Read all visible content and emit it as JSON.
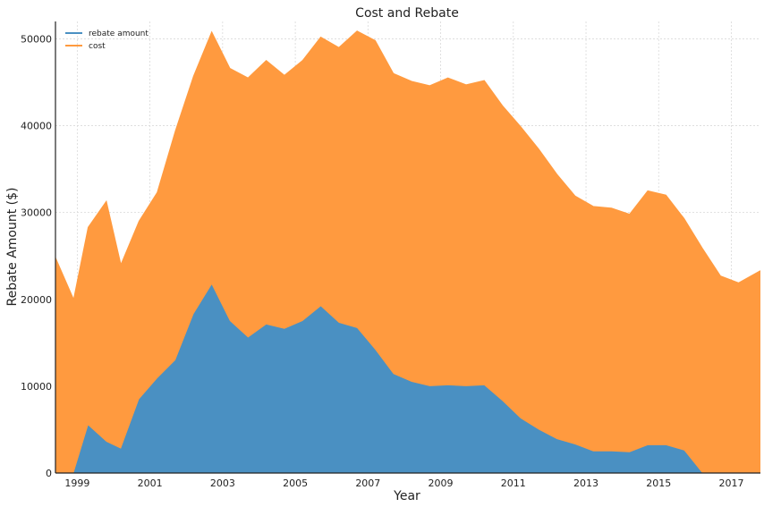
{
  "chart_data": {
    "type": "area",
    "stacked": true,
    "title": "Cost and Rebate",
    "xlabel": "Year",
    "ylabel": "Rebate Amount ($)",
    "xlim": [
      1998.4,
      2017.8
    ],
    "ylim": [
      0,
      52000
    ],
    "x_ticks": [
      1999,
      2001,
      2003,
      2005,
      2007,
      2009,
      2011,
      2013,
      2015,
      2017
    ],
    "y_ticks": [
      0,
      10000,
      20000,
      30000,
      40000,
      50000
    ],
    "grid": true,
    "legend_position": "top-left",
    "colors": {
      "rebate amount": "#4a90c2",
      "cost": "#ff9a3f"
    },
    "x": [
      1998.4,
      1998.9,
      1999.3,
      1999.8,
      2000.2,
      2000.7,
      2001.2,
      2001.7,
      2002.2,
      2002.7,
      2003.2,
      2003.7,
      2004.2,
      2004.7,
      2005.2,
      2005.7,
      2006.2,
      2006.7,
      2007.2,
      2007.7,
      2008.2,
      2008.7,
      2009.2,
      2009.7,
      2010.2,
      2010.7,
      2011.2,
      2011.7,
      2012.2,
      2012.7,
      2013.2,
      2013.7,
      2014.2,
      2014.7,
      2015.2,
      2015.7,
      2016.2,
      2016.7,
      2017.2,
      2017.8
    ],
    "series": [
      {
        "name": "rebate amount",
        "values": [
          0,
          0,
          5500,
          3600,
          2800,
          8500,
          10900,
          13000,
          18300,
          21700,
          17500,
          15600,
          17100,
          16600,
          17500,
          19200,
          17300,
          16700,
          14200,
          11400,
          10500,
          10000,
          10100,
          10000,
          10100,
          8300,
          6300,
          5000,
          3900,
          3300,
          2500,
          2500,
          2400,
          3200,
          3200,
          2600,
          0,
          0,
          0,
          0
        ]
      },
      {
        "name": "cost",
        "values": [
          24800,
          20000,
          22800,
          27700,
          21200,
          20500,
          21400,
          26400,
          27400,
          29100,
          29100,
          29900,
          30400,
          29200,
          30000,
          31000,
          31700,
          34200,
          35600,
          34600,
          34600,
          34600,
          35400,
          34700,
          35100,
          34000,
          33600,
          32300,
          30500,
          28600,
          28200,
          28000,
          27400,
          29300,
          28800,
          26700,
          25900,
          22700,
          21900,
          23300
        ]
      }
    ]
  }
}
